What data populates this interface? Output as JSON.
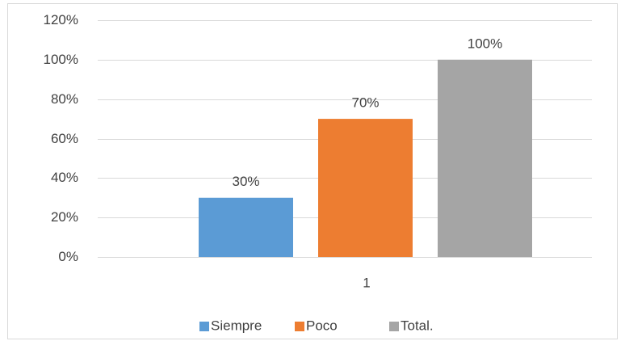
{
  "chart_data": {
    "type": "bar",
    "categories": [
      "1"
    ],
    "series": [
      {
        "name": "Siempre",
        "values": [
          30
        ],
        "color": "#5B9BD5",
        "label": "30%"
      },
      {
        "name": "Poco",
        "values": [
          70
        ],
        "color": "#ED7D31",
        "label": "70%"
      },
      {
        "name": "Total.",
        "values": [
          100
        ],
        "color": "#A5A5A5",
        "label": "100%"
      }
    ],
    "ylim": [
      0,
      120
    ],
    "yticks": [
      0,
      20,
      40,
      60,
      80,
      100,
      120
    ],
    "ytick_labels": [
      "0%",
      "20%",
      "40%",
      "60%",
      "80%",
      "100%",
      "120%"
    ],
    "grid": true,
    "legend": "bottom",
    "colors": {
      "grid": "#D9D9D9",
      "axis": "#D9D9D9",
      "frame": "#D9D9D9",
      "text": "#404040"
    }
  }
}
